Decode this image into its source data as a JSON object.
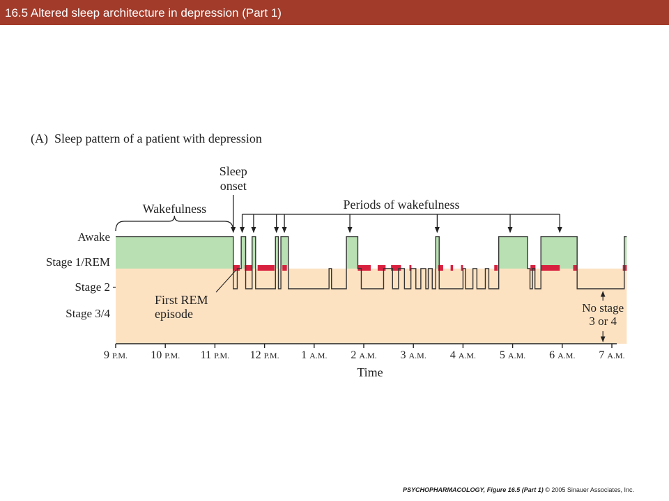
{
  "slide_title": "16.5 Altered sleep architecture in depression (Part 1)",
  "footer": {
    "book": "PSYCHOPHARMACOLOGY,",
    "figure": "Figure 16.5 (Part 1)",
    "copyright": "© 2005 Sinauer Associates, Inc."
  },
  "colors": {
    "title_bar": "#a23b2a",
    "awake_fill": "#b8e0b2",
    "stage_fill": "#fde2c2",
    "rem": "#d8213f"
  },
  "chart_data": {
    "type": "line",
    "title": "(A)  Sleep pattern of a patient with depression",
    "xlabel": "Time",
    "ylabel": "",
    "x_unit": "hours after 9 P.M.",
    "xlim": [
      0,
      10
    ],
    "ticks": [
      {
        "num": "9",
        "suffix": "P.M."
      },
      {
        "num": "10",
        "suffix": "P.M."
      },
      {
        "num": "11",
        "suffix": "P.M."
      },
      {
        "num": "12",
        "suffix": "P.M."
      },
      {
        "num": "1",
        "suffix": "A.M."
      },
      {
        "num": "2",
        "suffix": "A.M."
      },
      {
        "num": "3",
        "suffix": "A.M."
      },
      {
        "num": "4",
        "suffix": "A.M."
      },
      {
        "num": "5",
        "suffix": "A.M."
      },
      {
        "num": "6",
        "suffix": "A.M."
      },
      {
        "num": "7",
        "suffix": "A.M."
      }
    ],
    "levels": [
      "Awake",
      "Stage 1/REM",
      "Stage 2",
      "Stage 3/4"
    ],
    "level_labels": {
      "awake": "Awake",
      "stage1": "Stage 1/REM",
      "stage2": "Stage 2",
      "stage34": "Stage 3/4"
    },
    "hypnogram": [
      [
        0.0,
        "Awake"
      ],
      [
        2.37,
        "Stage 2"
      ],
      [
        2.45,
        "Stage 1/REM"
      ],
      [
        2.53,
        "Awake"
      ],
      [
        2.62,
        "Stage 2"
      ],
      [
        2.75,
        "Awake"
      ],
      [
        2.82,
        "Stage 2"
      ],
      [
        3.22,
        "Awake"
      ],
      [
        3.28,
        "Stage 2"
      ],
      [
        3.33,
        "Awake"
      ],
      [
        3.48,
        "Stage 2"
      ],
      [
        4.3,
        "Stage 1/REM"
      ],
      [
        4.35,
        "Stage 2"
      ],
      [
        4.65,
        "Awake"
      ],
      [
        4.88,
        "Stage 1/REM"
      ],
      [
        4.95,
        "Stage 2"
      ],
      [
        5.4,
        "Stage 1/REM"
      ],
      [
        5.58,
        "Stage 2"
      ],
      [
        5.7,
        "Stage 1/REM"
      ],
      [
        5.82,
        "Stage 2"
      ],
      [
        5.95,
        "Stage 1/REM"
      ],
      [
        6.05,
        "Stage 2"
      ],
      [
        6.15,
        "Stage 1/REM"
      ],
      [
        6.25,
        "Stage 2"
      ],
      [
        6.3,
        "Stage 1/REM"
      ],
      [
        6.38,
        "Stage 2"
      ],
      [
        6.45,
        "Awake"
      ],
      [
        6.52,
        "Stage 2"
      ],
      [
        7.0,
        "Stage 1/REM"
      ],
      [
        7.05,
        "Stage 2"
      ],
      [
        7.2,
        "Stage 1/REM"
      ],
      [
        7.28,
        "Stage 2"
      ],
      [
        7.45,
        "Stage 1/REM"
      ],
      [
        7.52,
        "Stage 2"
      ],
      [
        7.72,
        "Awake"
      ],
      [
        8.3,
        "Stage 1/REM"
      ],
      [
        8.35,
        "Stage 2"
      ],
      [
        8.4,
        "Stage 1/REM"
      ],
      [
        8.45,
        "Stage 2"
      ],
      [
        8.57,
        "Awake"
      ],
      [
        9.3,
        "Stage 2"
      ],
      [
        10.25,
        "Awake"
      ],
      [
        10.3,
        "end"
      ]
    ],
    "rem_episodes": [
      [
        2.38,
        2.5
      ],
      [
        2.6,
        2.75
      ],
      [
        2.86,
        3.2
      ],
      [
        3.36,
        3.45
      ],
      [
        4.88,
        5.14
      ],
      [
        5.28,
        5.44
      ],
      [
        5.55,
        5.75
      ],
      [
        5.92,
        5.96
      ],
      [
        6.5,
        6.6
      ],
      [
        6.75,
        6.8
      ],
      [
        6.96,
        7.0
      ],
      [
        7.63,
        7.7
      ],
      [
        8.36,
        8.46
      ],
      [
        8.57,
        8.95
      ],
      [
        9.22,
        9.29
      ],
      [
        10.22,
        10.3
      ]
    ],
    "annotations": {
      "wakefulness": "Wakefulness",
      "wakefulness_range": [
        0.0,
        2.37
      ],
      "sleep_onset_line1": "Sleep",
      "sleep_onset_line2": "onset",
      "sleep_onset_x": 2.37,
      "periods": "Periods of wakefulness",
      "period_arrows_x": [
        2.55,
        2.78,
        3.24,
        3.4,
        4.72,
        6.48,
        7.95,
        8.95
      ],
      "first_rem_line1": "First REM",
      "first_rem_line2": "episode",
      "first_rem_x": 2.4,
      "no_stage_line1": "No stage",
      "no_stage_line2": "3 or 4",
      "no_stage_x": 9.82
    }
  }
}
